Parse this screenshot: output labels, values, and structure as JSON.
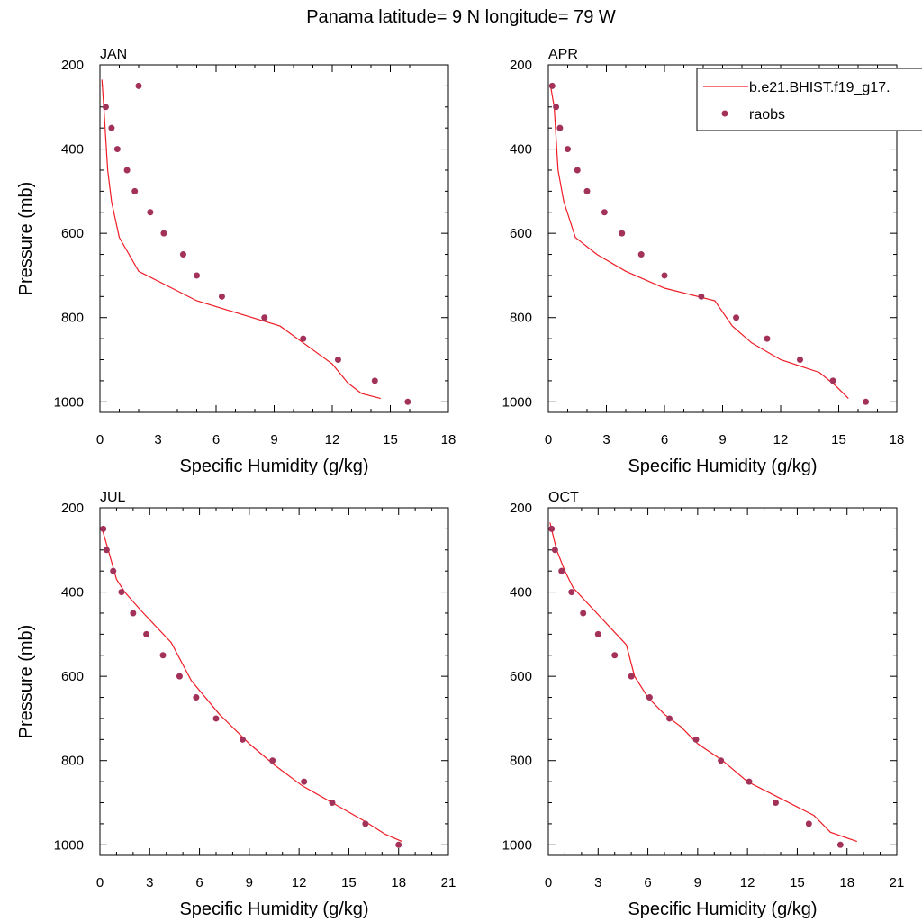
{
  "title": "Panama  latitude= 9 N longitude= 79 W",
  "colors": {
    "model": "#ee1c25",
    "obs": "#a3325a",
    "axis": "#000000"
  },
  "legend": {
    "placement": "top-right",
    "model_label": "b.e21.BHIST.f19_g17.",
    "obs_label": "raobs"
  },
  "chart_data": [
    {
      "type": "line",
      "panel_title": "JAN",
      "xlabel": "Specific Humidity (g/kg)",
      "ylabel": "Pressure (mb)",
      "xlim": [
        0,
        18
      ],
      "ylim": [
        200,
        1025
      ],
      "y_reversed": true,
      "xticks": [
        0,
        3,
        6,
        9,
        12,
        15,
        18
      ],
      "yticks": [
        200,
        400,
        600,
        800,
        1000
      ],
      "series": [
        {
          "name": "b.e21.BHIST.f19_g17.",
          "kind": "line",
          "x": [
            0.1,
            0.2,
            0.4,
            0.6,
            1.0,
            1.5,
            2.0,
            5.0,
            9.3,
            10.5,
            12.0,
            12.8,
            13.5,
            14.5
          ],
          "y": [
            235,
            300,
            450,
            525,
            610,
            650,
            690,
            760,
            820,
            860,
            910,
            955,
            980,
            992
          ]
        },
        {
          "name": "raobs",
          "kind": "scatter",
          "x": [
            2.0,
            0.3,
            0.6,
            0.9,
            1.4,
            1.8,
            2.6,
            3.3,
            4.3,
            5.0,
            6.3,
            8.5,
            10.5,
            12.3,
            14.2,
            15.9
          ],
          "y": [
            250,
            300,
            350,
            400,
            450,
            500,
            550,
            600,
            650,
            700,
            750,
            800,
            850,
            900,
            950,
            1000
          ]
        }
      ]
    },
    {
      "type": "line",
      "panel_title": "APR",
      "xlabel": "Specific Humidity (g/kg)",
      "ylabel": "",
      "xlim": [
        0,
        18
      ],
      "ylim": [
        200,
        1025
      ],
      "y_reversed": true,
      "xticks": [
        0,
        3,
        6,
        9,
        12,
        15,
        18
      ],
      "yticks": [
        200,
        400,
        600,
        800,
        1000
      ],
      "series": [
        {
          "name": "b.e21.BHIST.f19_g17.",
          "kind": "line",
          "x": [
            0.1,
            0.3,
            0.5,
            0.8,
            1.4,
            2.5,
            4.0,
            6.0,
            8.6,
            9.5,
            10.5,
            12.0,
            14.0,
            14.8,
            15.5
          ],
          "y": [
            245,
            300,
            450,
            525,
            610,
            650,
            690,
            730,
            760,
            820,
            860,
            900,
            930,
            960,
            992
          ]
        },
        {
          "name": "raobs",
          "kind": "scatter",
          "x": [
            0.2,
            0.4,
            0.6,
            1.0,
            1.5,
            2.0,
            2.9,
            3.8,
            4.8,
            6.0,
            7.9,
            9.7,
            11.3,
            13.0,
            14.7,
            16.4
          ],
          "y": [
            250,
            300,
            350,
            400,
            450,
            500,
            550,
            600,
            650,
            700,
            750,
            800,
            850,
            900,
            950,
            1000
          ]
        }
      ]
    },
    {
      "type": "line",
      "panel_title": "JUL",
      "xlabel": "Specific Humidity (g/kg)",
      "ylabel": "Pressure (mb)",
      "xlim": [
        0,
        21
      ],
      "ylim": [
        200,
        1025
      ],
      "y_reversed": true,
      "xticks": [
        0,
        3,
        6,
        9,
        12,
        15,
        18,
        21
      ],
      "yticks": [
        200,
        400,
        600,
        800,
        1000
      ],
      "series": [
        {
          "name": "b.e21.BHIST.f19_g17.",
          "kind": "line",
          "x": [
            0.1,
            0.5,
            1.0,
            1.5,
            2.5,
            4.3,
            5.5,
            7.2,
            9.0,
            10.5,
            12.2,
            14.0,
            16.0,
            17.2,
            18.2
          ],
          "y": [
            245,
            300,
            370,
            400,
            445,
            520,
            610,
            690,
            760,
            810,
            860,
            900,
            945,
            975,
            992
          ]
        },
        {
          "name": "raobs",
          "kind": "scatter",
          "x": [
            0.2,
            0.4,
            0.8,
            1.3,
            2.0,
            2.8,
            3.8,
            4.8,
            5.8,
            7.0,
            8.6,
            10.4,
            12.3,
            14.0,
            16.0,
            18.0
          ],
          "y": [
            250,
            300,
            350,
            400,
            450,
            500,
            550,
            600,
            650,
            700,
            750,
            800,
            850,
            900,
            950,
            1000
          ]
        }
      ]
    },
    {
      "type": "line",
      "panel_title": "OCT",
      "xlabel": "Specific Humidity (g/kg)",
      "ylabel": "",
      "xlim": [
        0,
        21
      ],
      "ylim": [
        200,
        1025
      ],
      "y_reversed": true,
      "xticks": [
        0,
        3,
        6,
        9,
        12,
        15,
        18,
        21
      ],
      "yticks": [
        200,
        400,
        600,
        800,
        1000
      ],
      "series": [
        {
          "name": "b.e21.BHIST.f19_g17.",
          "kind": "line",
          "x": [
            0.1,
            0.5,
            1.0,
            1.5,
            2.8,
            4.7,
            5.2,
            6.0,
            7.0,
            8.0,
            9.0,
            10.5,
            12.0,
            14.0,
            16.0,
            17.0,
            18.6
          ],
          "y": [
            235,
            300,
            350,
            390,
            445,
            525,
            600,
            650,
            690,
            720,
            760,
            800,
            850,
            890,
            930,
            970,
            992
          ]
        },
        {
          "name": "raobs",
          "kind": "scatter",
          "x": [
            0.2,
            0.4,
            0.8,
            1.4,
            2.1,
            3.0,
            4.0,
            5.0,
            6.1,
            7.3,
            8.9,
            10.4,
            12.1,
            13.7,
            15.7,
            17.6
          ],
          "y": [
            250,
            300,
            350,
            400,
            450,
            500,
            550,
            600,
            650,
            700,
            750,
            800,
            850,
            900,
            950,
            1000
          ]
        }
      ]
    }
  ]
}
